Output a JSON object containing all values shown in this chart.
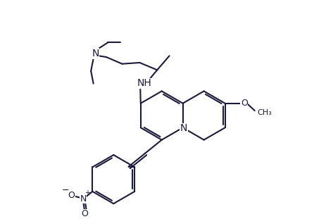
{
  "background_color": "#ffffff",
  "line_color": "#1a1a3a",
  "line_width": 1.5,
  "font_size": 10,
  "fig_width": 4.64,
  "fig_height": 3.11,
  "dpi": 100,
  "xlim": [
    0,
    9.28
  ],
  "ylim": [
    0,
    6.22
  ]
}
